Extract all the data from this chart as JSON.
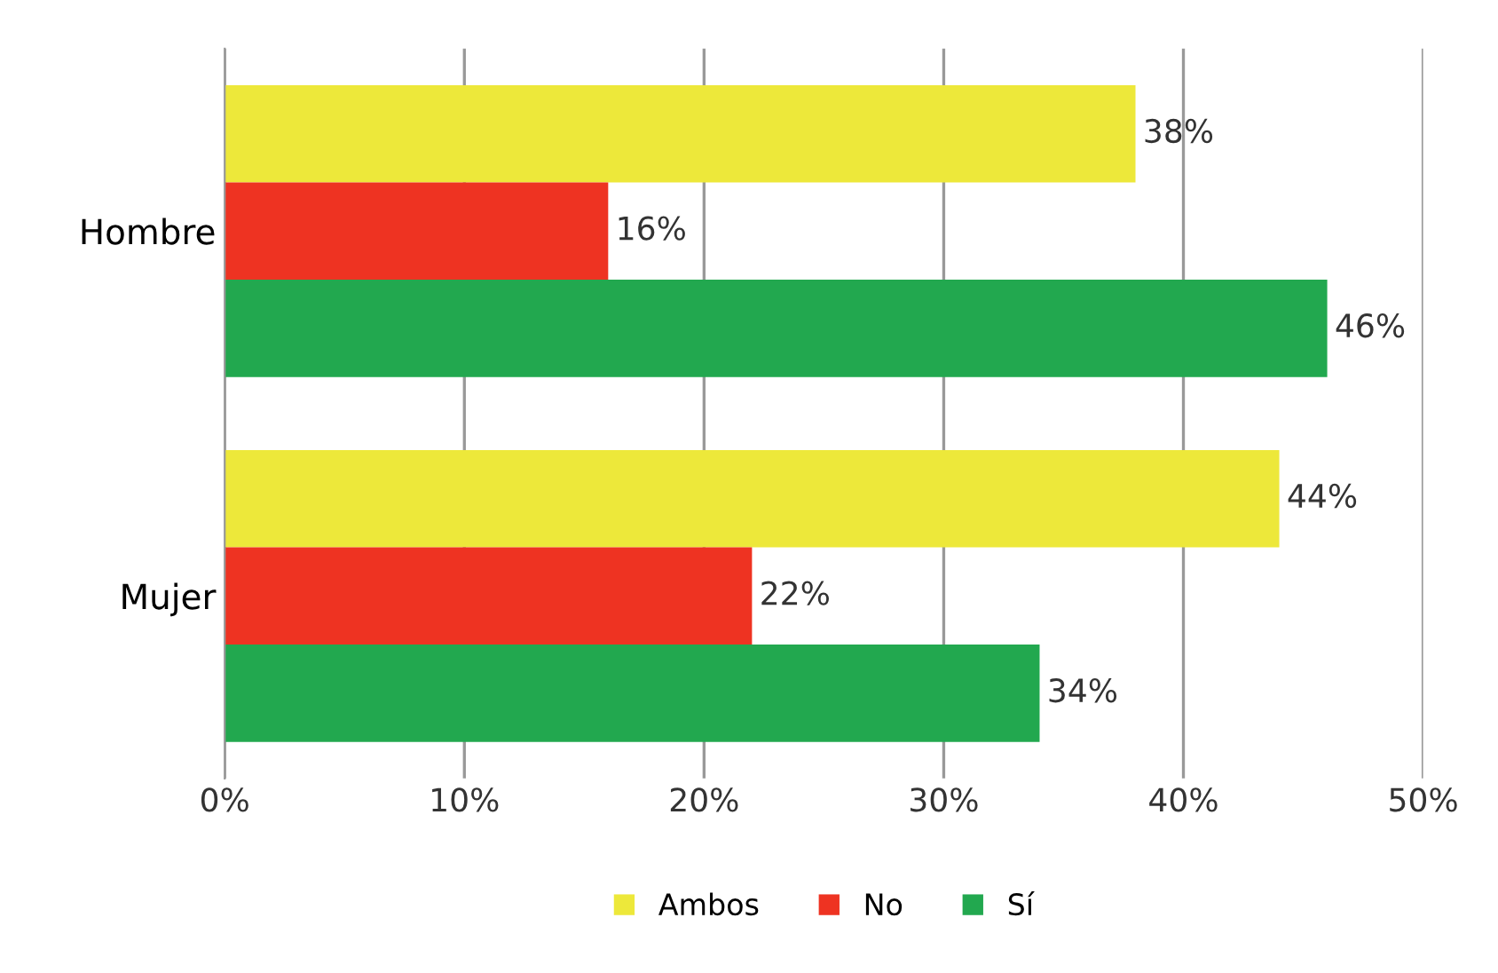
{
  "chart_data": {
    "type": "bar",
    "orientation": "horizontal",
    "categories": [
      "Hombre",
      "Mujer"
    ],
    "series": [
      {
        "name": "Ambos",
        "color": "#ede83a",
        "values": [
          38,
          44
        ],
        "value_labels": [
          "38%",
          "44%"
        ]
      },
      {
        "name": "No",
        "color": "#ee3322",
        "values": [
          16,
          22
        ],
        "value_labels": [
          "16%",
          "22%"
        ]
      },
      {
        "name": "Sí",
        "color": "#22a84f",
        "values": [
          46,
          34
        ],
        "value_labels": [
          "46%",
          "34%"
        ]
      }
    ],
    "xlim": [
      0,
      50
    ],
    "xticks": [
      {
        "value": 0,
        "label": "0%"
      },
      {
        "value": 10,
        "label": "10%"
      },
      {
        "value": 20,
        "label": "20%"
      },
      {
        "value": 30,
        "label": "30%"
      },
      {
        "value": 40,
        "label": "40%"
      },
      {
        "value": 50,
        "label": "50%"
      }
    ],
    "grid": "x",
    "legend": "bottom"
  }
}
